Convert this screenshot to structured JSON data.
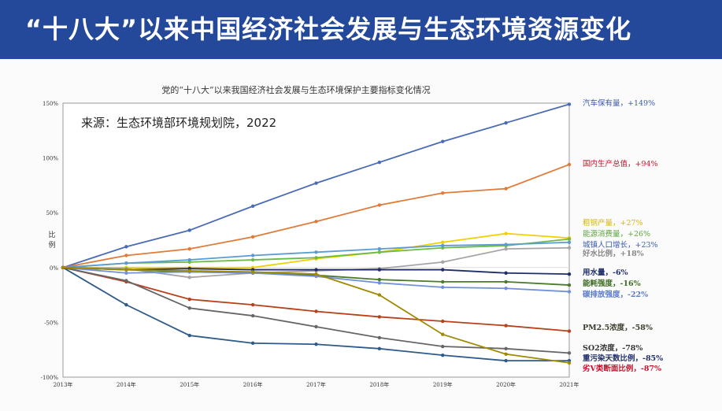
{
  "header": {
    "title": "“十八大”以来中国经济社会发展与生态环境资源变化"
  },
  "chart_data": {
    "type": "line",
    "title": "党的“十八大”以来我国经济社会发展与生态环境保护主要指标变化情况",
    "source_note": "来源：生态环境部环境规划院，2022",
    "xlabel": "",
    "ylabel": "比例",
    "ylim": [
      -100,
      150
    ],
    "yticks": [
      150,
      100,
      50,
      0,
      -50,
      -100
    ],
    "ytick_labels": [
      "150%",
      "100%",
      "50%",
      "0%",
      "-50%",
      "-100%"
    ],
    "categories": [
      "2013年",
      "2014年",
      "2015年",
      "2016年",
      "2017年",
      "2018年",
      "2019年",
      "2020年",
      "2021年"
    ],
    "grid": false,
    "legend": "right (end labels)",
    "series": [
      {
        "name": "汽车保有量，+149%",
        "color": "#4a6bb5",
        "label_color": "#3a5aa8",
        "values": [
          0,
          19,
          34,
          56,
          77,
          96,
          115,
          132,
          149
        ]
      },
      {
        "name": "国内生产总值，+94%",
        "color": "#e07b39",
        "label_color": "#c0142c",
        "values": [
          0,
          11,
          17,
          28,
          42,
          57,
          68,
          72,
          94
        ]
      },
      {
        "name": "粗钢产量，+27%",
        "color": "#f0d000",
        "label_color": "#d4b800",
        "values": [
          0,
          0,
          0,
          0,
          8,
          14,
          23,
          31,
          27
        ]
      },
      {
        "name": "能源消费量，+26%",
        "color": "#6cbb45",
        "label_color": "#5aa43a",
        "values": [
          0,
          4,
          5,
          7,
          9,
          14,
          18,
          20,
          26
        ]
      },
      {
        "name": "城镇人口增长，+23%",
        "color": "#5b9bd5",
        "label_color": "#3a5aa8",
        "values": [
          0,
          4,
          7,
          11,
          14,
          17,
          20,
          21,
          23
        ]
      },
      {
        "name": "好水比例，+18%",
        "color": "#a5a5a5",
        "label_color": "#888888",
        "values": [
          0,
          -1,
          -9,
          -5,
          -3,
          -1,
          5,
          17,
          18
        ]
      },
      {
        "name": "用水量，-6%",
        "color": "#1f2d6b",
        "label_color": "#1f2d6b",
        "values": [
          0,
          -2,
          -1,
          -2,
          -2,
          -2,
          -2,
          -5,
          -6
        ]
      },
      {
        "name": "能耗强度，-16%",
        "color": "#4a7a2a",
        "label_color": "#3d6b22",
        "values": [
          0,
          -2,
          -4,
          -5,
          -7,
          -11,
          -13,
          -13,
          -16
        ]
      },
      {
        "name": "碳排放强度，-22%",
        "color": "#7090d8",
        "label_color": "#5a7ac8",
        "values": [
          0,
          -5,
          -4,
          -5,
          -8,
          -14,
          -18,
          -19,
          -22
        ]
      },
      {
        "name": "PM2.5浓度，-58%",
        "color": "#b8401a",
        "label_color": "#3a3a2a",
        "values": [
          0,
          -13,
          -29,
          -34,
          -40,
          -45,
          -49,
          -53,
          -58
        ]
      },
      {
        "name": "SO2浓度，-78%",
        "color": "#666666",
        "label_color": "#333333",
        "values": [
          0,
          -12,
          -37,
          -44,
          -54,
          -64,
          -72,
          -74,
          -78
        ]
      },
      {
        "name": "重污染天数比例，-85%",
        "color": "#2e5b8a",
        "label_color": "#1f2d6b",
        "values": [
          0,
          -34,
          -62,
          -69,
          -70,
          -74,
          -80,
          -85,
          -85
        ]
      },
      {
        "name": "劣V类断面比例，-87%",
        "color": "#a08a00",
        "label_color": "#c0142c",
        "values": [
          0,
          -2,
          -3,
          -4,
          -6,
          -25,
          -61,
          -79,
          -87
        ]
      }
    ]
  }
}
